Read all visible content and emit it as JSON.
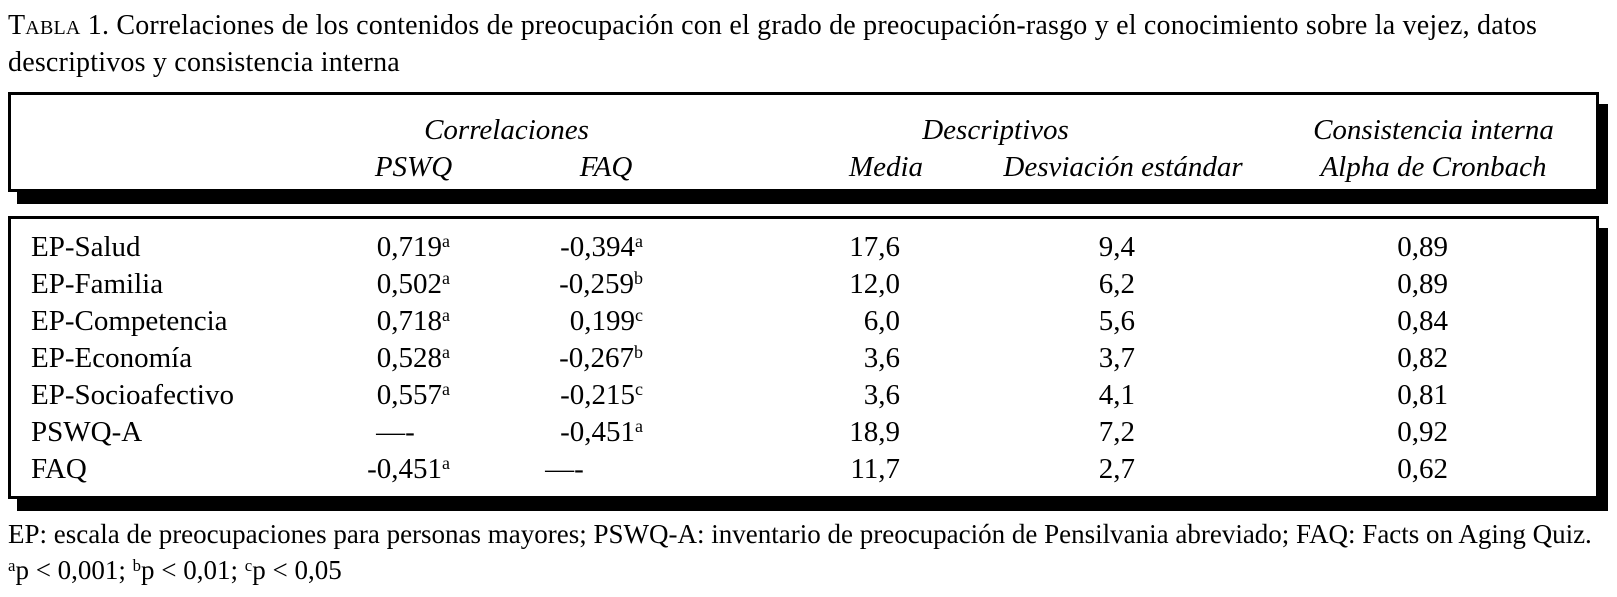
{
  "title": {
    "label": "Tabla 1.",
    "text": " Correlaciones de los contenidos de preocupación con el grado de preocupación-rasgo y el conocimiento sobre la vejez, datos descriptivos y consistencia interna"
  },
  "table": {
    "group_headers": {
      "correlaciones": "Correlaciones",
      "descriptivos": "Descriptivos",
      "consistencia": "Consistencia interna"
    },
    "column_headers": {
      "pswq": "PSWQ",
      "faq": "FAQ",
      "media": "Media",
      "desviacion": "Desviación estándar",
      "alpha": "Alpha de Cronbach"
    },
    "rows": [
      {
        "label": "EP-Salud",
        "pswq": "0,719",
        "pswq_sup": "a",
        "faq": "-0,394",
        "faq_sup": "a",
        "media": "17,6",
        "desviacion": "9,4",
        "alpha": "0,89"
      },
      {
        "label": "EP-Familia",
        "pswq": "0,502",
        "pswq_sup": "a",
        "faq": "-0,259",
        "faq_sup": "b",
        "media": "12,0",
        "desviacion": "6,2",
        "alpha": "0,89"
      },
      {
        "label": "EP-Competencia",
        "pswq": "0,718",
        "pswq_sup": "a",
        "faq": "0,199",
        "faq_sup": "c",
        "media": "6,0",
        "desviacion": "5,6",
        "alpha": "0,84"
      },
      {
        "label": "EP-Economía",
        "pswq": "0,528",
        "pswq_sup": "a",
        "faq": "-0,267",
        "faq_sup": "b",
        "media": "3,6",
        "desviacion": "3,7",
        "alpha": "0,82"
      },
      {
        "label": "EP-Socioafectivo",
        "pswq": "0,557",
        "pswq_sup": "a",
        "faq": "-0,215",
        "faq_sup": "c",
        "media": "3,6",
        "desviacion": "4,1",
        "alpha": "0,81"
      },
      {
        "label": "PSWQ-A",
        "pswq": "—-",
        "pswq_sup": "",
        "faq": "-0,451",
        "faq_sup": "a",
        "media": "18,9",
        "desviacion": "7,2",
        "alpha": "0,92"
      },
      {
        "label": "FAQ",
        "pswq": "-0,451",
        "pswq_sup": "a",
        "faq": "—-",
        "faq_sup": "",
        "media": "11,7",
        "desviacion": "2,7",
        "alpha": "0,62"
      }
    ]
  },
  "footnotes": {
    "abbreviations": "EP: escala de preocupaciones para personas mayores; PSWQ-A: inventario de preocupación de Pensilvania abreviado; FAQ: Facts on Aging Quiz.",
    "significance": [
      {
        "sup": "a",
        "text": "p < 0,001; "
      },
      {
        "sup": "b",
        "text": "p < 0,01; "
      },
      {
        "sup": "c",
        "text": "p < 0,05"
      }
    ]
  },
  "colors": {
    "text": "#000000",
    "background": "#ffffff",
    "border": "#000000"
  }
}
